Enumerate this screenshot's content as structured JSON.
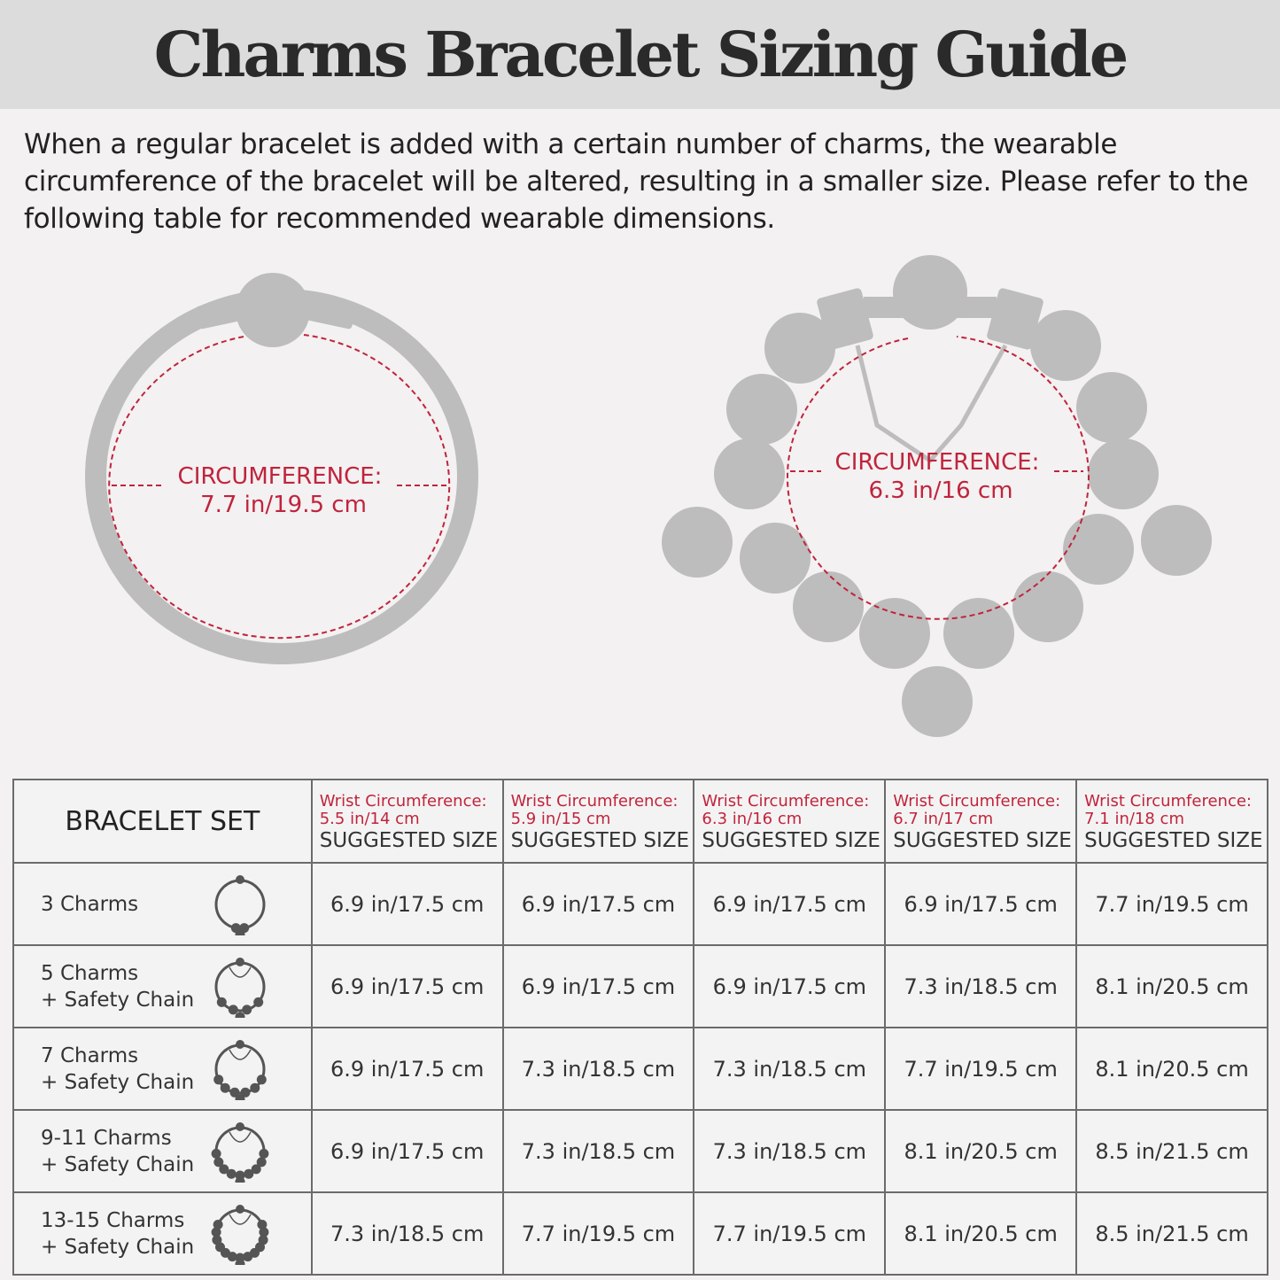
{
  "title": "Charms Bracelet Sizing Guide",
  "intro": "When a regular bracelet is added with a certain number of charms, the wearable circumference of the bracelet will be altered, resulting in a smaller size. Please refer to the following table for recommended wearable dimensions.",
  "diagrams": {
    "regular": {
      "label": "CIRCUMFERENCE:",
      "value": "7.7 in/19.5 cm"
    },
    "charmed": {
      "label": "CIRCUMFERENCE:",
      "value": "6.3 in/16 cm"
    }
  },
  "colors": {
    "accent": "#c0243c",
    "silhouette": "#bdbdbd",
    "header_bg": "#dcdcdc"
  },
  "table": {
    "corner": "BRACELET SET",
    "columns": [
      {
        "wrist": "Wrist Circumference:",
        "size": "5.5 in/14 cm",
        "suggested": "SUGGESTED SIZE"
      },
      {
        "wrist": "Wrist Circumference:",
        "size": "5.9 in/15 cm",
        "suggested": "SUGGESTED SIZE"
      },
      {
        "wrist": "Wrist Circumference:",
        "size": "6.3 in/16 cm",
        "suggested": "SUGGESTED SIZE"
      },
      {
        "wrist": "Wrist Circumference:",
        "size": "6.7 in/17 cm",
        "suggested": "SUGGESTED SIZE"
      },
      {
        "wrist": "Wrist Circumference:",
        "size": "7.1 in/18 cm",
        "suggested": "SUGGESTED SIZE"
      }
    ],
    "rows": [
      {
        "line1": "3 Charms",
        "line2": "",
        "icon": "bracelet-3-charms-icon",
        "values": [
          "6.9 in/17.5 cm",
          "6.9 in/17.5 cm",
          "6.9 in/17.5 cm",
          "6.9 in/17.5 cm",
          "7.7 in/19.5 cm"
        ]
      },
      {
        "line1": "5 Charms",
        "line2": "+ Safety Chain",
        "icon": "bracelet-5-charms-icon",
        "values": [
          "6.9 in/17.5 cm",
          "6.9 in/17.5 cm",
          "6.9 in/17.5 cm",
          "7.3 in/18.5 cm",
          "8.1 in/20.5 cm"
        ]
      },
      {
        "line1": "7 Charms",
        "line2": "+ Safety Chain",
        "icon": "bracelet-7-charms-icon",
        "values": [
          "6.9 in/17.5 cm",
          "7.3 in/18.5 cm",
          "7.3 in/18.5 cm",
          "7.7 in/19.5 cm",
          "8.1 in/20.5 cm"
        ]
      },
      {
        "line1": "9-11 Charms",
        "line2": "+ Safety Chain",
        "icon": "bracelet-9-11-charms-icon",
        "values": [
          "6.9 in/17.5 cm",
          "7.3 in/18.5 cm",
          "7.3 in/18.5 cm",
          "8.1 in/20.5 cm",
          "8.5 in/21.5 cm"
        ]
      },
      {
        "line1": "13-15 Charms",
        "line2": "+ Safety Chain",
        "icon": "bracelet-13-15-charms-icon",
        "values": [
          "7.3 in/18.5 cm",
          "7.7 in/19.5 cm",
          "7.7 in/19.5 cm",
          "8.1 in/20.5 cm",
          "8.5 in/21.5 cm"
        ]
      }
    ]
  }
}
